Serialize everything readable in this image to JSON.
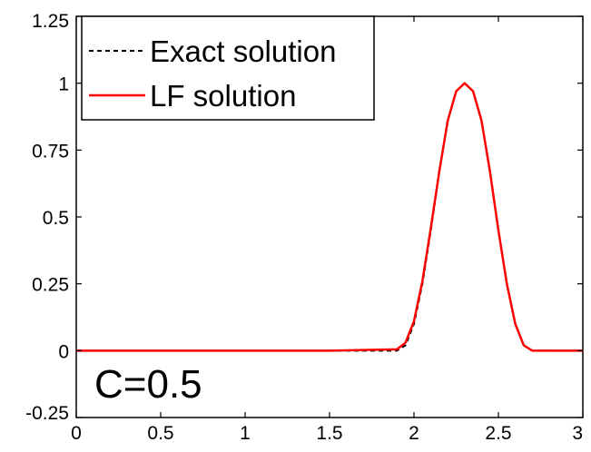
{
  "chart_data": {
    "type": "line",
    "title": "",
    "xlabel": "",
    "ylabel": "",
    "xlim": [
      0,
      3
    ],
    "ylim": [
      -0.25,
      1.25
    ],
    "x_ticks": [
      0,
      0.5,
      1,
      1.5,
      2,
      2.5,
      3
    ],
    "x_tick_labels": [
      "0",
      "0.5",
      "1",
      "1.5",
      "2",
      "2.5",
      "3"
    ],
    "y_ticks": [
      -0.25,
      0,
      0.25,
      0.5,
      0.75,
      1,
      1.25
    ],
    "y_tick_labels": [
      "-0.25",
      "0",
      "0.25",
      "0.5",
      "0.75",
      "1",
      "1.25"
    ],
    "grid": false,
    "legend_position": "top-left",
    "annotation": "C=0.5",
    "series": [
      {
        "name": "Exact solution",
        "color": "#000000",
        "style": "dashed",
        "x": [
          0,
          0.5,
          1.0,
          1.5,
          1.9,
          1.95,
          2.0,
          2.05,
          2.1,
          2.15,
          2.2,
          2.25,
          2.3,
          2.35,
          2.4,
          2.45,
          2.5,
          2.55,
          2.6,
          2.65,
          2.7,
          2.8,
          3.0
        ],
        "y": [
          0,
          0,
          0,
          0,
          0,
          0.02,
          0.1,
          0.25,
          0.45,
          0.67,
          0.86,
          0.97,
          1.0,
          0.97,
          0.86,
          0.67,
          0.45,
          0.25,
          0.1,
          0.02,
          0,
          0,
          0
        ]
      },
      {
        "name": "LF solution",
        "color": "#ff0000",
        "style": "solid",
        "x": [
          0,
          0.5,
          1.0,
          1.5,
          1.9,
          1.95,
          2.0,
          2.05,
          2.1,
          2.15,
          2.2,
          2.25,
          2.3,
          2.35,
          2.4,
          2.45,
          2.5,
          2.55,
          2.6,
          2.65,
          2.7,
          2.8,
          3.0
        ],
        "y": [
          0,
          0,
          0,
          0,
          0.005,
          0.03,
          0.11,
          0.26,
          0.46,
          0.67,
          0.86,
          0.97,
          1.0,
          0.97,
          0.86,
          0.67,
          0.45,
          0.25,
          0.1,
          0.02,
          0,
          0,
          0
        ]
      }
    ]
  }
}
